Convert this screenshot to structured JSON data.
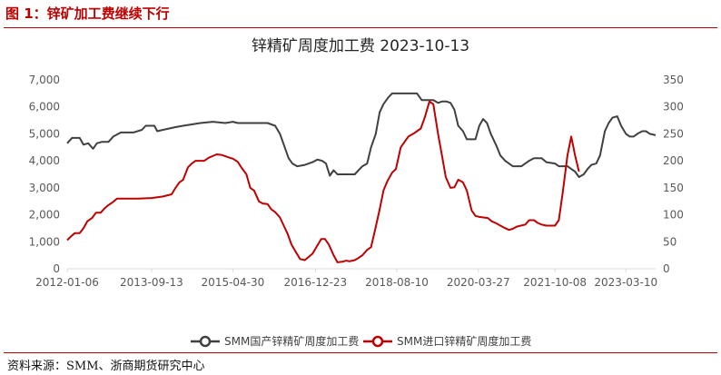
{
  "figure": {
    "caption": "图 1：锌矿加工费继续下行",
    "source": "资料来源：SMM、浙商期货研究中心"
  },
  "colors": {
    "series_domestic": "#404040",
    "series_import": "#c00000",
    "caption": "#c00000",
    "axis": "#d9d9d9"
  },
  "chart_data": {
    "type": "line",
    "title": "锌精矿周度加工费 2023-10-13",
    "x_ticks": [
      "2012-01-06",
      "2013-09-13",
      "2015-04-30",
      "2016-12-23",
      "2018-08-10",
      "2020-03-27",
      "2021-10-08",
      "2023-03-10"
    ],
    "x_range": [
      "2012-01-06",
      "2023-10-13"
    ],
    "y_left": {
      "ticks": [
        "0",
        "1,000",
        "2,000",
        "3,000",
        "4,000",
        "5,000",
        "6,000",
        "7,000"
      ],
      "range": [
        0,
        7000
      ]
    },
    "y_right": {
      "ticks": [
        "0",
        "50",
        "100",
        "150",
        "200",
        "250",
        "300",
        "350"
      ],
      "range": [
        0,
        350
      ]
    },
    "grid": false,
    "legend_position": "bottom",
    "series": [
      {
        "name": "SMM国产锌精矿周度加工费",
        "axis": "left",
        "points": [
          [
            "2012-01-06",
            4650
          ],
          [
            "2012-02-10",
            4850
          ],
          [
            "2012-04-06",
            4850
          ],
          [
            "2012-05-04",
            4600
          ],
          [
            "2012-06-08",
            4650
          ],
          [
            "2012-07-13",
            4450
          ],
          [
            "2012-08-10",
            4650
          ],
          [
            "2012-09-14",
            4700
          ],
          [
            "2012-11-02",
            4700
          ],
          [
            "2012-12-07",
            4900
          ],
          [
            "2013-02-01",
            5050
          ],
          [
            "2013-05-03",
            5050
          ],
          [
            "2013-07-05",
            5150
          ],
          [
            "2013-08-02",
            5300
          ],
          [
            "2013-10-04",
            5300
          ],
          [
            "2013-10-25",
            5100
          ],
          [
            "2013-12-06",
            5150
          ],
          [
            "2014-03-07",
            5250
          ],
          [
            "2014-05-02",
            5300
          ],
          [
            "2014-09-05",
            5400
          ],
          [
            "2014-12-05",
            5450
          ],
          [
            "2015-03-06",
            5400
          ],
          [
            "2015-04-30",
            5450
          ],
          [
            "2015-06-05",
            5400
          ],
          [
            "2015-09-04",
            5400
          ],
          [
            "2016-01-08",
            5400
          ],
          [
            "2016-03-04",
            5300
          ],
          [
            "2016-04-08",
            5000
          ],
          [
            "2016-05-13",
            4500
          ],
          [
            "2016-06-10",
            4100
          ],
          [
            "2016-07-08",
            3900
          ],
          [
            "2016-08-12",
            3800
          ],
          [
            "2016-10-07",
            3850
          ],
          [
            "2016-12-02",
            3950
          ],
          [
            "2017-01-06",
            4050
          ],
          [
            "2017-02-10",
            4000
          ],
          [
            "2017-03-10",
            3900
          ],
          [
            "2017-04-07",
            3450
          ],
          [
            "2017-05-05",
            3650
          ],
          [
            "2017-06-02",
            3500
          ],
          [
            "2017-10-06",
            3500
          ],
          [
            "2017-12-01",
            3800
          ],
          [
            "2018-01-05",
            3900
          ],
          [
            "2018-02-02",
            4500
          ],
          [
            "2018-03-09",
            5000
          ],
          [
            "2018-04-06",
            5800
          ],
          [
            "2018-05-04",
            6100
          ],
          [
            "2018-06-08",
            6350
          ],
          [
            "2018-07-06",
            6500
          ],
          [
            "2018-10-05",
            6500
          ],
          [
            "2019-01-04",
            6500
          ],
          [
            "2019-02-08",
            6250
          ],
          [
            "2019-04-05",
            6250
          ],
          [
            "2019-05-03",
            6250
          ],
          [
            "2019-06-07",
            6150
          ],
          [
            "2019-07-05",
            6200
          ],
          [
            "2019-08-09",
            6200
          ],
          [
            "2019-09-06",
            6150
          ],
          [
            "2019-10-04",
            5900
          ],
          [
            "2019-11-01",
            5300
          ],
          [
            "2019-12-06",
            5100
          ],
          [
            "2020-01-03",
            4800
          ],
          [
            "2020-03-06",
            4800
          ],
          [
            "2020-04-03",
            5300
          ],
          [
            "2020-05-01",
            5550
          ],
          [
            "2020-05-29",
            5400
          ],
          [
            "2020-06-26",
            5000
          ],
          [
            "2020-08-07",
            4550
          ],
          [
            "2020-09-04",
            4200
          ],
          [
            "2020-10-09",
            4000
          ],
          [
            "2020-12-04",
            3800
          ],
          [
            "2021-02-05",
            3800
          ],
          [
            "2021-04-02",
            4000
          ],
          [
            "2021-05-07",
            4100
          ],
          [
            "2021-07-02",
            4100
          ],
          [
            "2021-08-06",
            3950
          ],
          [
            "2021-10-08",
            3900
          ],
          [
            "2021-11-05",
            3800
          ],
          [
            "2022-01-07",
            3800
          ],
          [
            "2022-02-04",
            3700
          ],
          [
            "2022-03-04",
            3600
          ],
          [
            "2022-04-01",
            3400
          ],
          [
            "2022-05-06",
            3500
          ],
          [
            "2022-06-03",
            3700
          ],
          [
            "2022-07-01",
            3850
          ],
          [
            "2022-08-05",
            3900
          ],
          [
            "2022-09-02",
            4200
          ],
          [
            "2022-10-07",
            5100
          ],
          [
            "2022-11-04",
            5400
          ],
          [
            "2022-12-02",
            5600
          ],
          [
            "2023-01-06",
            5650
          ],
          [
            "2023-02-03",
            5300
          ],
          [
            "2023-03-10",
            5000
          ],
          [
            "2023-04-07",
            4900
          ],
          [
            "2023-05-05",
            4900
          ],
          [
            "2023-06-02",
            5000
          ],
          [
            "2023-07-07",
            5100
          ],
          [
            "2023-08-04",
            5100
          ],
          [
            "2023-09-01",
            5000
          ],
          [
            "2023-10-13",
            4950
          ]
        ]
      },
      {
        "name": "SMM进口锌精矿周度加工费",
        "axis": "right",
        "points": [
          [
            "2012-01-06",
            53
          ],
          [
            "2012-02-03",
            60
          ],
          [
            "2012-03-02",
            66
          ],
          [
            "2012-04-06",
            66
          ],
          [
            "2012-05-04",
            75
          ],
          [
            "2012-06-01",
            88
          ],
          [
            "2012-07-06",
            94
          ],
          [
            "2012-08-03",
            104
          ],
          [
            "2012-09-07",
            104
          ],
          [
            "2012-10-05",
            112
          ],
          [
            "2012-11-02",
            118
          ],
          [
            "2012-12-07",
            124
          ],
          [
            "2013-01-04",
            130
          ],
          [
            "2013-03-01",
            130
          ],
          [
            "2013-06-07",
            130
          ],
          [
            "2013-09-13",
            131
          ],
          [
            "2013-12-06",
            134
          ],
          [
            "2014-02-07",
            138
          ],
          [
            "2014-03-07",
            150
          ],
          [
            "2014-04-04",
            160
          ],
          [
            "2014-05-02",
            165
          ],
          [
            "2014-06-06",
            188
          ],
          [
            "2014-07-04",
            195
          ],
          [
            "2014-08-01",
            200
          ],
          [
            "2014-10-03",
            200
          ],
          [
            "2014-11-07",
            206
          ],
          [
            "2015-01-02",
            212
          ],
          [
            "2015-02-06",
            211
          ],
          [
            "2015-04-03",
            206
          ],
          [
            "2015-05-01",
            204
          ],
          [
            "2015-06-05",
            198
          ],
          [
            "2015-07-03",
            187
          ],
          [
            "2015-08-07",
            175
          ],
          [
            "2015-09-04",
            150
          ],
          [
            "2015-10-02",
            145
          ],
          [
            "2015-11-06",
            125
          ],
          [
            "2015-12-04",
            121
          ],
          [
            "2016-01-08",
            120
          ],
          [
            "2016-02-05",
            110
          ],
          [
            "2016-03-04",
            105
          ],
          [
            "2016-04-08",
            95
          ],
          [
            "2016-05-06",
            80
          ],
          [
            "2016-06-03",
            65
          ],
          [
            "2016-07-01",
            45
          ],
          [
            "2016-08-05",
            30
          ],
          [
            "2016-09-02",
            18
          ],
          [
            "2016-10-07",
            16
          ],
          [
            "2016-11-04",
            22
          ],
          [
            "2016-12-02",
            28
          ],
          [
            "2016-12-30",
            40
          ],
          [
            "2017-02-03",
            55
          ],
          [
            "2017-03-03",
            55
          ],
          [
            "2017-03-31",
            45
          ],
          [
            "2017-05-05",
            25
          ],
          [
            "2017-06-02",
            12
          ],
          [
            "2017-07-07",
            13
          ],
          [
            "2017-08-04",
            15
          ],
          [
            "2017-09-01",
            14
          ],
          [
            "2017-10-06",
            16
          ],
          [
            "2017-11-03",
            20
          ],
          [
            "2017-12-01",
            25
          ],
          [
            "2018-01-05",
            35
          ],
          [
            "2018-02-02",
            40
          ],
          [
            "2018-03-02",
            70
          ],
          [
            "2018-04-06",
            110
          ],
          [
            "2018-05-04",
            145
          ],
          [
            "2018-06-01",
            162
          ],
          [
            "2018-07-06",
            178
          ],
          [
            "2018-08-03",
            185
          ],
          [
            "2018-09-07",
            225
          ],
          [
            "2018-10-05",
            235
          ],
          [
            "2018-11-02",
            245
          ],
          [
            "2018-12-07",
            250
          ],
          [
            "2019-01-04",
            255
          ],
          [
            "2019-02-01",
            260
          ],
          [
            "2019-03-01",
            280
          ],
          [
            "2019-04-05",
            310
          ],
          [
            "2019-05-03",
            305
          ],
          [
            "2019-06-07",
            250
          ],
          [
            "2019-07-05",
            210
          ],
          [
            "2019-08-02",
            170
          ],
          [
            "2019-09-06",
            150
          ],
          [
            "2019-10-04",
            151
          ],
          [
            "2019-11-01",
            165
          ],
          [
            "2019-12-06",
            160
          ],
          [
            "2020-01-03",
            145
          ],
          [
            "2020-02-07",
            108
          ],
          [
            "2020-03-06",
            98
          ],
          [
            "2020-04-03",
            96
          ],
          [
            "2020-06-05",
            94
          ],
          [
            "2020-07-03",
            88
          ],
          [
            "2020-08-07",
            84
          ],
          [
            "2020-09-04",
            80
          ],
          [
            "2020-10-02",
            76
          ],
          [
            "2020-11-06",
            72
          ],
          [
            "2020-12-04",
            74
          ],
          [
            "2021-01-01",
            78
          ],
          [
            "2021-03-05",
            82
          ],
          [
            "2021-04-02",
            90
          ],
          [
            "2021-05-07",
            90
          ],
          [
            "2021-06-04",
            85
          ],
          [
            "2021-07-02",
            82
          ],
          [
            "2021-08-06",
            80
          ],
          [
            "2021-10-08",
            80
          ],
          [
            "2021-11-05",
            90
          ],
          [
            "2021-12-03",
            140
          ],
          [
            "2022-01-07",
            210
          ],
          [
            "2022-02-04",
            245
          ],
          [
            "2022-03-04",
            210
          ],
          [
            "2022-04-01",
            180
          ]
        ]
      }
    ]
  }
}
